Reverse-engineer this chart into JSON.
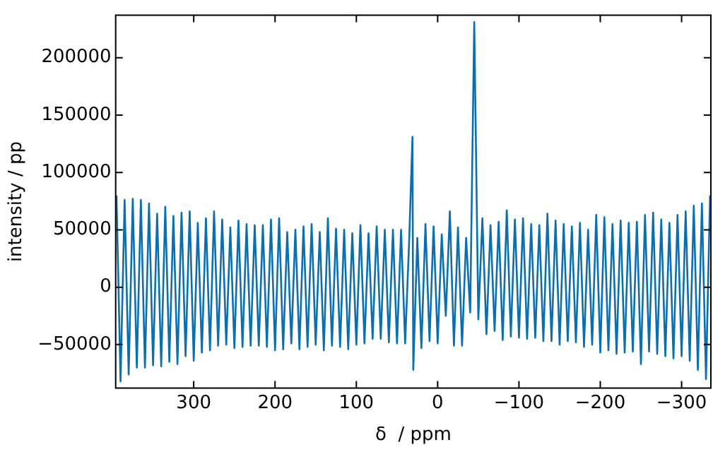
{
  "chart_data": {
    "type": "line",
    "xlabel": "δ  / ppm",
    "ylabel": "intensity / pp",
    "x": [
      395,
      390,
      385,
      380,
      375,
      370,
      365,
      360,
      355,
      350,
      345,
      340,
      335,
      330,
      325,
      320,
      315,
      310,
      305,
      300,
      295,
      290,
      285,
      280,
      275,
      270,
      265,
      260,
      255,
      250,
      245,
      240,
      235,
      230,
      225,
      220,
      215,
      210,
      205,
      200,
      195,
      190,
      185,
      180,
      175,
      170,
      165,
      160,
      155,
      150,
      145,
      140,
      135,
      130,
      125,
      120,
      115,
      110,
      105,
      100,
      95,
      90,
      85,
      80,
      75,
      70,
      65,
      60,
      55,
      50,
      45,
      40,
      35,
      31,
      30,
      25,
      20,
      15,
      10,
      5,
      0,
      -5,
      -10,
      -15,
      -20,
      -25,
      -30,
      -35,
      -40,
      -45,
      -50,
      -55,
      -60,
      -65,
      -70,
      -75,
      -80,
      -85,
      -90,
      -95,
      -100,
      -105,
      -110,
      -115,
      -120,
      -125,
      -130,
      -135,
      -140,
      -145,
      -150,
      -155,
      -160,
      -165,
      -170,
      -175,
      -180,
      -185,
      -190,
      -195,
      -200,
      -205,
      -210,
      -215,
      -220,
      -225,
      -230,
      -235,
      -240,
      -245,
      -250,
      -255,
      -260,
      -265,
      -270,
      -275,
      -280,
      -285,
      -290,
      -295,
      -300,
      -305,
      -310,
      -315,
      -320,
      -325,
      -330,
      -335
    ],
    "series": [
      {
        "color": "#0a6fb0",
        "values": [
          80000,
          -82000,
          76000,
          -76000,
          77000,
          -70000,
          76000,
          -70000,
          73000,
          -68000,
          64000,
          -69000,
          70000,
          -65000,
          62000,
          -67000,
          65000,
          -60000,
          66000,
          -64000,
          56000,
          -57000,
          60000,
          -55000,
          66000,
          -51000,
          59000,
          -50000,
          52000,
          -53000,
          58000,
          -52000,
          55000,
          -51000,
          54000,
          -51000,
          54000,
          -52000,
          59000,
          -55000,
          60000,
          -54000,
          48000,
          -49000,
          50000,
          -54000,
          53000,
          -52000,
          55000,
          -50000,
          48000,
          -55000,
          60000,
          -51000,
          51000,
          -52000,
          50000,
          -54000,
          47000,
          -50000,
          54000,
          -49000,
          47000,
          -45000,
          53000,
          -45000,
          50000,
          -48000,
          50000,
          -49000,
          50000,
          -49000,
          41000,
          131000,
          -72000,
          43000,
          -53000,
          55000,
          -47000,
          53000,
          -49000,
          46000,
          -25000,
          66000,
          -51000,
          52000,
          -51000,
          43000,
          -22000,
          231000,
          -28000,
          60000,
          -41000,
          54000,
          -38000,
          57000,
          -46000,
          67000,
          -43000,
          59000,
          -44000,
          60000,
          -45000,
          55000,
          -44000,
          54000,
          -47000,
          64000,
          -47000,
          58000,
          -50000,
          55000,
          -47000,
          53000,
          -48000,
          56000,
          -52000,
          50000,
          -50000,
          63000,
          -57000,
          61000,
          -55000,
          55000,
          -58000,
          58000,
          -57000,
          56000,
          -56000,
          57000,
          -67000,
          63000,
          -56000,
          65000,
          -58000,
          59000,
          -60000,
          56000,
          -62000,
          63000,
          -60000,
          66000,
          -64000,
          71000,
          -72000,
          73000,
          -80000,
          80000
        ]
      }
    ],
    "xlim": [
      396,
      -336
    ],
    "ylim": [
      -88000,
      237000
    ],
    "xticks": [
      300,
      200,
      100,
      0,
      {
        "value": -100,
        "label": "−100"
      },
      {
        "value": -200,
        "label": "−200"
      },
      {
        "value": -300,
        "label": "−300"
      }
    ],
    "yticks": [
      {
        "value": -50000,
        "label": "−50000"
      },
      0,
      50000,
      100000,
      150000,
      200000
    ],
    "grid": false,
    "legend": false,
    "marker": "none",
    "line_style": "solid"
  }
}
